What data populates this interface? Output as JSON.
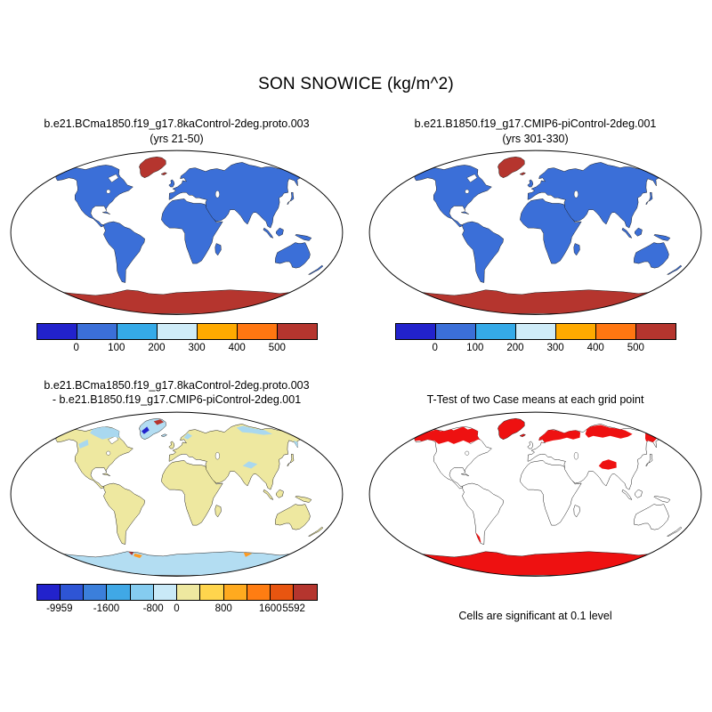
{
  "figure_title": "SON SNOWICE (kg/m^2)",
  "panels": {
    "case1": {
      "title_line1": "b.e21.BCma1850.f19_g17.8kaControl-2deg.proto.003",
      "title_line2": "(yrs 21-50)"
    },
    "case2": {
      "title_line1": "b.e21.B1850.f19_g17.CMIP6-piControl-2deg.001",
      "title_line2": "(yrs 301-330)"
    },
    "diff": {
      "title_line1": "b.e21.BCma1850.f19_g17.8kaControl-2deg.proto.003",
      "title_line2": "- b.e21.B1850.f19_g17.CMIP6-piControl-2deg.001"
    },
    "ttest": {
      "title": "T-Test of two Case means at each grid point",
      "caption": "Cells are significant at 0.1 level"
    }
  },
  "colorbars": {
    "mean": {
      "colors": [
        "#2222cc",
        "#3b6fd8",
        "#35aaе8",
        "#cfecf8",
        "#ffaa00",
        "#ff7711",
        "#b5352e"
      ],
      "ticks": [
        {
          "label": "0",
          "b": 1
        },
        {
          "label": "100",
          "b": 2
        },
        {
          "label": "200",
          "b": 3
        },
        {
          "label": "300",
          "b": 4
        },
        {
          "label": "400",
          "b": 5
        },
        {
          "label": "500",
          "b": 6
        }
      ]
    },
    "diff": {
      "colors": [
        "#2222cc",
        "#2e55d5",
        "#3b7fdb",
        "#40a8e6",
        "#85ccf0",
        "#c9e9f7",
        "#eee8a0",
        "#ffd54d",
        "#ffaa1f",
        "#ff7d12",
        "#e85510",
        "#b5352e"
      ],
      "ticks": [
        {
          "label": "-9959",
          "b": 1
        },
        {
          "label": "-1600",
          "b": 3
        },
        {
          "label": "-800",
          "b": 5
        },
        {
          "label": "0",
          "b": 6
        },
        {
          "label": "800",
          "b": 8
        },
        {
          "label": "1600",
          "b": 10
        },
        {
          "label": "5592",
          "b": 11
        }
      ]
    }
  },
  "map_styles": {
    "case1": {
      "land": "#3b6fd8",
      "ice": "#b5352e",
      "coast": "#1a1a1a"
    },
    "case2": {
      "land": "#3b6fd8",
      "ice": "#b5352e",
      "coast": "#1a1a1a"
    },
    "diff": {
      "land": "#eee8a0",
      "ice": "#b3ddf2",
      "coast": "#1a1a1a",
      "patch_blue": "#a9d8ef",
      "patch_dark": "#2222cc",
      "patch_red": "#b5352e",
      "patch_orange": "#ff9a1f"
    },
    "ttest": {
      "land": "#ffffff",
      "ice": "#ee1111",
      "coast": "#111111",
      "patch": "#ee1111"
    }
  },
  "chart_data": [
    {
      "type": "map",
      "panel": "top-left",
      "title": "b.e21.BCma1850.f19_g17.8kaControl-2deg.proto.003 (yrs 21-50)",
      "variable": "SON SNOWICE",
      "units": "kg/m^2",
      "projection": "global ellipse (Robinson-like)",
      "colorbar_tick_values": [
        0,
        100,
        200,
        300,
        400,
        500
      ],
      "colorbar_segments": 7,
      "description": "Seasonal (SON) snow/ice mass: most land in lowest bin (blue), Greenland and Antarctica in highest bin (red), oceans white"
    },
    {
      "type": "map",
      "panel": "top-right",
      "title": "b.e21.B1850.f19_g17.CMIP6-piControl-2deg.001 (yrs 301-330)",
      "variable": "SON SNOWICE",
      "units": "kg/m^2",
      "projection": "global ellipse (Robinson-like)",
      "colorbar_tick_values": [
        0,
        100,
        200,
        300,
        400,
        500
      ],
      "colorbar_segments": 7,
      "description": "Same field for the piControl case: land blue (low values), Greenland and Antarctica red (high values)"
    },
    {
      "type": "map",
      "panel": "bottom-left",
      "title": "b.e21.BCma1850.f19_g17.8kaControl-2deg.proto.003 - b.e21.B1850.f19_g17.CMIP6-piControl-2deg.001",
      "variable": "SON SNOWICE difference",
      "units": "kg/m^2",
      "min": -9959,
      "max": 5592,
      "colorbar_tick_values": [
        -9959,
        -1600,
        -800,
        0,
        800,
        1600,
        5592
      ],
      "colorbar_segments": 12,
      "description": "Difference map: land mostly small positive (pale yellow); light-blue negative patches over arctic Canada, Greenland, Siberia, Tibet and Antarctica; small strong anomalies on Greenland and the Antarctic margin"
    },
    {
      "type": "map",
      "panel": "bottom-right",
      "title": "T-Test of two Case means at each grid point",
      "caption": "Cells are significant at 0.1 level",
      "description": "Significance mask: red cells over high northern latitudes (arctic North America, Scandinavia, Russia, Siberia, Chukotka), Greenland, Tibet, Patagonia and Antarctica; other land white with black coastlines"
    }
  ]
}
